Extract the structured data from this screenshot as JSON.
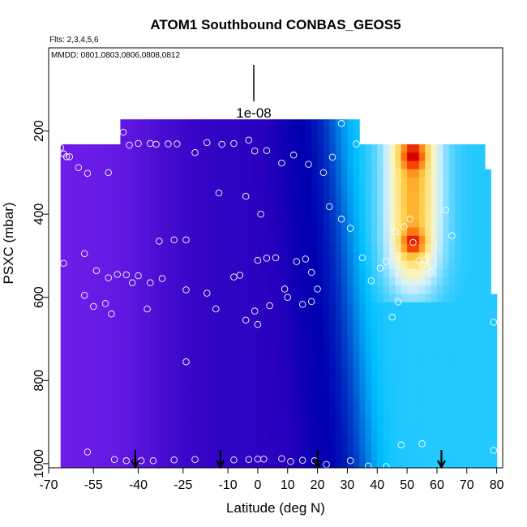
{
  "header": {
    "title": "ATOM1 Southbound CONBAS_GEOS5",
    "flights_note": "Flts: 2,3,4,5,6",
    "dates_note": "MMDD: 0801,0803,0806,0808,0812",
    "scale_label": "1e-08"
  },
  "chart_data": {
    "type": "heatmap",
    "title": "ATOM1 Southbound CONBAS_GEOS5",
    "xlabel": "Latitude (deg N)",
    "ylabel": "PSXC (mbar)",
    "xlim": [
      -70,
      82
    ],
    "ylim": [
      1010,
      0
    ],
    "y_reversed": true,
    "x_ticks": [
      -70,
      -55,
      -40,
      -25,
      -10,
      0,
      10,
      20,
      30,
      40,
      50,
      60,
      70,
      80
    ],
    "x_tick_labels": [
      "-70",
      "-55",
      "-40",
      "-25",
      "-10",
      "0",
      "10",
      "20",
      "30",
      "40",
      "50",
      "60",
      "70",
      "80"
    ],
    "y_ticks": [
      200,
      400,
      600,
      800,
      1000
    ],
    "y_tick_labels": [
      "200",
      "400",
      "600",
      "800",
      "1000"
    ],
    "grid": false,
    "colors": {
      "low": "#7a22f0",
      "mid_low": "#0000b4",
      "mid": "#00c0ff",
      "mid_high": "#fff4b0",
      "high": "#e00000"
    },
    "legend": "none",
    "flight_arrows_lat": [
      -41,
      -12.5,
      20,
      61.5
    ],
    "sample_points": [
      [
        -68,
        228
      ],
      [
        -67,
        233
      ],
      [
        -66,
        240
      ],
      [
        -65,
        255
      ],
      [
        -64,
        262
      ],
      [
        -63,
        262
      ],
      [
        -60,
        288
      ],
      [
        -57,
        302
      ],
      [
        -50,
        300
      ],
      [
        -45,
        203
      ],
      [
        -43,
        234
      ],
      [
        -40,
        230
      ],
      [
        -36,
        230
      ],
      [
        -34,
        232
      ],
      [
        -30,
        231
      ],
      [
        -27,
        231
      ],
      [
        -21,
        252
      ],
      [
        -17,
        228
      ],
      [
        -12,
        232
      ],
      [
        -8,
        230
      ],
      [
        -3,
        222
      ],
      [
        -1,
        248
      ],
      [
        3,
        247
      ],
      [
        8,
        277
      ],
      [
        12,
        258
      ],
      [
        17,
        280
      ],
      [
        22,
        300
      ],
      [
        25,
        263
      ],
      [
        28,
        182
      ],
      [
        33,
        231
      ],
      [
        -68,
        480
      ],
      [
        -65,
        518
      ],
      [
        -58,
        495
      ],
      [
        -54,
        536
      ],
      [
        -50,
        553
      ],
      [
        -47,
        545
      ],
      [
        -44,
        546
      ],
      [
        -42,
        565
      ],
      [
        -40,
        548
      ],
      [
        -36,
        565
      ],
      [
        -33,
        465
      ],
      [
        -28,
        462
      ],
      [
        -24,
        462
      ],
      [
        -17,
        590
      ],
      [
        -13,
        349
      ],
      [
        -8,
        551
      ],
      [
        -6,
        547
      ],
      [
        -4,
        357
      ],
      [
        0,
        511
      ],
      [
        1,
        400
      ],
      [
        3,
        506
      ],
      [
        6,
        505
      ],
      [
        9,
        580
      ],
      [
        13,
        514
      ],
      [
        16,
        508
      ],
      [
        18,
        540
      ],
      [
        20,
        580
      ],
      [
        24,
        382
      ],
      [
        28,
        412
      ],
      [
        31,
        434
      ],
      [
        35,
        505
      ],
      [
        38,
        560
      ],
      [
        41,
        530
      ],
      [
        43,
        514
      ],
      [
        46,
        442
      ],
      [
        49,
        430
      ],
      [
        51,
        412
      ],
      [
        52,
        468
      ],
      [
        54,
        512
      ],
      [
        56,
        510
      ],
      [
        58,
        540
      ],
      [
        63,
        390
      ],
      [
        65,
        452
      ],
      [
        -58,
        595
      ],
      [
        -55,
        622
      ],
      [
        -51,
        615
      ],
      [
        -49,
        640
      ],
      [
        -37,
        628
      ],
      [
        -32,
        555
      ],
      [
        -24,
        582
      ],
      [
        -14,
        628
      ],
      [
        -4,
        655
      ],
      [
        -1,
        633
      ],
      [
        0,
        665
      ],
      [
        4,
        620
      ],
      [
        10,
        600
      ],
      [
        15,
        617
      ],
      [
        18,
        610
      ],
      [
        45,
        648
      ],
      [
        47,
        611
      ],
      [
        79,
        660
      ],
      [
        -24,
        755
      ],
      [
        -68,
        975
      ],
      [
        -57,
        972
      ],
      [
        -48,
        990
      ],
      [
        -44,
        993
      ],
      [
        -39,
        993
      ],
      [
        -35,
        993
      ],
      [
        -28,
        991
      ],
      [
        -21,
        990
      ],
      [
        -8,
        991
      ],
      [
        -3,
        990
      ],
      [
        0,
        989
      ],
      [
        2,
        989
      ],
      [
        8,
        988
      ],
      [
        11,
        995
      ],
      [
        15,
        992
      ],
      [
        19,
        993
      ],
      [
        23,
        1002
      ],
      [
        31,
        993
      ],
      [
        37,
        1006
      ],
      [
        43,
        1007
      ],
      [
        48,
        955
      ],
      [
        55,
        952
      ],
      [
        79,
        968
      ]
    ]
  }
}
